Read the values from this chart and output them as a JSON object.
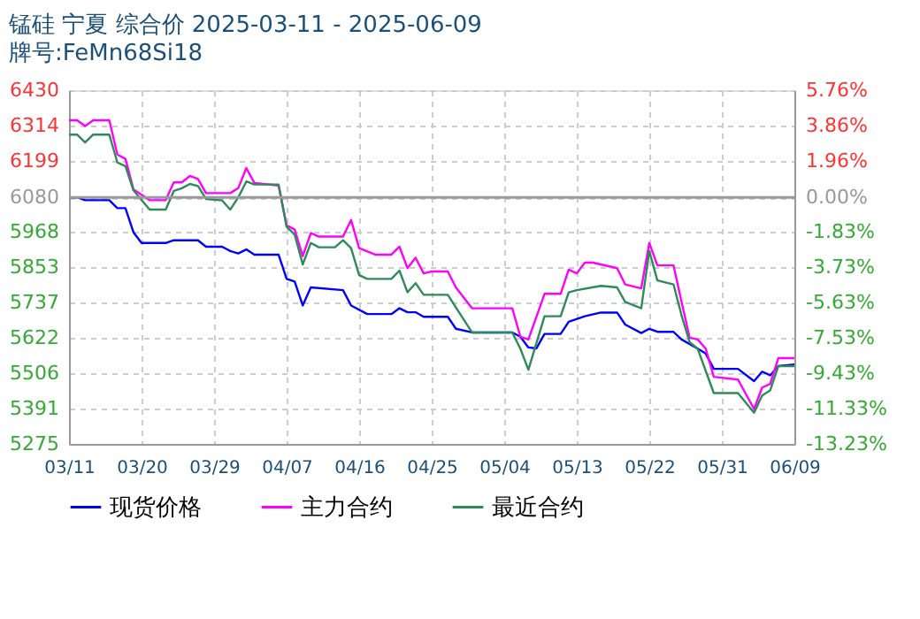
{
  "chart_data": {
    "type": "line",
    "title": "锰硅 宁夏 综合价 2025-03-11 - 2025-06-09",
    "subtitle": "牌号:FeMn68Si18",
    "series": [
      {
        "name": "现货价格",
        "color": "#0000ff",
        "x": [
          "2025-03-11",
          "2025-03-12",
          "2025-03-13",
          "2025-03-16",
          "2025-03-17",
          "2025-03-18",
          "2025-03-19",
          "2025-03-20",
          "2025-03-23",
          "2025-03-24",
          "2025-03-27",
          "2025-03-28",
          "2025-03-30",
          "2025-03-31",
          "2025-04-01",
          "2025-04-02",
          "2025-04-03",
          "2025-04-06",
          "2025-04-07",
          "2025-04-08",
          "2025-04-09",
          "2025-04-10",
          "2025-04-14",
          "2025-04-15",
          "2025-04-17",
          "2025-04-20",
          "2025-04-21",
          "2025-04-22",
          "2025-04-23",
          "2025-04-24",
          "2025-04-27",
          "2025-04-28",
          "2025-04-30",
          "2025-05-05",
          "2025-05-06",
          "2025-05-07",
          "2025-05-08",
          "2025-05-09",
          "2025-05-11",
          "2025-05-12",
          "2025-05-14",
          "2025-05-16",
          "2025-05-18",
          "2025-05-19",
          "2025-05-21",
          "2025-05-22",
          "2025-05-23",
          "2025-05-25",
          "2025-05-26",
          "2025-05-28",
          "2025-05-29",
          "2025-05-30",
          "2025-06-02",
          "2025-06-04",
          "2025-06-05",
          "2025-06-06",
          "2025-06-07",
          "2025-06-09"
        ],
        "values": [
          6080,
          6080,
          6071,
          6071,
          6045,
          6045,
          5966,
          5931,
          5931,
          5940,
          5940,
          5919,
          5919,
          5905,
          5897,
          5910,
          5893,
          5893,
          5814,
          5805,
          5727,
          5786,
          5777,
          5727,
          5699,
          5699,
          5718,
          5705,
          5705,
          5690,
          5690,
          5651,
          5639,
          5639,
          5625,
          5590,
          5587,
          5634,
          5634,
          5674,
          5692,
          5704,
          5704,
          5665,
          5637,
          5651,
          5641,
          5641,
          5616,
          5586,
          5570,
          5520,
          5520,
          5480,
          5511,
          5499,
          5529,
          5534
        ]
      },
      {
        "name": "主力合约",
        "color": "#ff00ff",
        "x": [
          "2025-03-11",
          "2025-03-12",
          "2025-03-13",
          "2025-03-14",
          "2025-03-16",
          "2025-03-17",
          "2025-03-18",
          "2025-03-19",
          "2025-03-21",
          "2025-03-23",
          "2025-03-24",
          "2025-03-25",
          "2025-03-26",
          "2025-03-27",
          "2025-03-28",
          "2025-03-31",
          "2025-04-01",
          "2025-04-02",
          "2025-04-03",
          "2025-04-06",
          "2025-04-07",
          "2025-04-08",
          "2025-04-09",
          "2025-04-10",
          "2025-04-11",
          "2025-04-14",
          "2025-04-15",
          "2025-04-16",
          "2025-04-18",
          "2025-04-20",
          "2025-04-21",
          "2025-04-22",
          "2025-04-23",
          "2025-04-24",
          "2025-04-25",
          "2025-04-27",
          "2025-04-28",
          "2025-04-30",
          "2025-05-05",
          "2025-05-06",
          "2025-05-07",
          "2025-05-09",
          "2025-05-11",
          "2025-05-12",
          "2025-05-13",
          "2025-05-14",
          "2025-05-15",
          "2025-05-18",
          "2025-05-19",
          "2025-05-21",
          "2025-05-22",
          "2025-05-23",
          "2025-05-25",
          "2025-05-26",
          "2025-05-27",
          "2025-05-28",
          "2025-05-29",
          "2025-05-30",
          "2025-06-02",
          "2025-06-04",
          "2025-06-05",
          "2025-06-06",
          "2025-06-07",
          "2025-06-09"
        ],
        "values": [
          6332,
          6332,
          6313,
          6332,
          6332,
          6220,
          6206,
          6106,
          6071,
          6071,
          6129,
          6129,
          6150,
          6140,
          6094,
          6094,
          6110,
          6176,
          6127,
          6119,
          5989,
          5975,
          5888,
          5963,
          5952,
          5952,
          6006,
          5914,
          5893,
          5893,
          5919,
          5849,
          5883,
          5832,
          5838,
          5838,
          5786,
          5718,
          5718,
          5625,
          5616,
          5765,
          5765,
          5844,
          5832,
          5867,
          5867,
          5849,
          5796,
          5783,
          5931,
          5858,
          5858,
          5739,
          5622,
          5616,
          5586,
          5494,
          5485,
          5389,
          5459,
          5471,
          5555,
          5555
        ]
      },
      {
        "name": "最近合约",
        "color": "#2e8b57",
        "x": [
          "2025-03-11",
          "2025-03-12",
          "2025-03-13",
          "2025-03-14",
          "2025-03-16",
          "2025-03-17",
          "2025-03-18",
          "2025-03-19",
          "2025-03-21",
          "2025-03-23",
          "2025-03-24",
          "2025-03-25",
          "2025-03-26",
          "2025-03-27",
          "2025-03-28",
          "2025-03-30",
          "2025-03-31",
          "2025-04-01",
          "2025-04-02",
          "2025-04-03",
          "2025-04-06",
          "2025-04-07",
          "2025-04-08",
          "2025-04-09",
          "2025-04-10",
          "2025-04-11",
          "2025-04-13",
          "2025-04-14",
          "2025-04-15",
          "2025-04-16",
          "2025-04-17",
          "2025-04-20",
          "2025-04-21",
          "2025-04-22",
          "2025-04-23",
          "2025-04-24",
          "2025-04-27",
          "2025-04-28",
          "2025-04-30",
          "2025-05-05",
          "2025-05-06",
          "2025-05-07",
          "2025-05-09",
          "2025-05-11",
          "2025-05-12",
          "2025-05-13",
          "2025-05-16",
          "2025-05-18",
          "2025-05-19",
          "2025-05-21",
          "2025-05-22",
          "2025-05-23",
          "2025-05-25",
          "2025-05-26",
          "2025-05-27",
          "2025-05-28",
          "2025-05-30",
          "2025-06-02",
          "2025-06-04",
          "2025-06-05",
          "2025-06-06",
          "2025-06-07",
          "2025-06-09"
        ],
        "values": [
          6285,
          6285,
          6259,
          6285,
          6285,
          6194,
          6182,
          6103,
          6040,
          6040,
          6101,
          6110,
          6124,
          6117,
          6075,
          6070,
          6040,
          6080,
          6132,
          6122,
          6122,
          5984,
          5958,
          5861,
          5931,
          5917,
          5917,
          5940,
          5914,
          5826,
          5814,
          5814,
          5841,
          5770,
          5800,
          5762,
          5762,
          5721,
          5639,
          5639,
          5586,
          5517,
          5692,
          5692,
          5770,
          5777,
          5791,
          5786,
          5739,
          5718,
          5905,
          5809,
          5796,
          5695,
          5607,
          5586,
          5441,
          5441,
          5377,
          5433,
          5450,
          5529,
          5529
        ]
      }
    ],
    "xlim": [
      "2025-03-11",
      "2025-06-09"
    ],
    "xticks": [
      {
        "value": "2025-03-11",
        "label": "03/11"
      },
      {
        "value": "2025-03-20",
        "label": "03/20"
      },
      {
        "value": "2025-03-29",
        "label": "03/29"
      },
      {
        "value": "2025-04-07",
        "label": "04/07"
      },
      {
        "value": "2025-04-16",
        "label": "04/16"
      },
      {
        "value": "2025-04-25",
        "label": "04/25"
      },
      {
        "value": "2025-05-04",
        "label": "05/04"
      },
      {
        "value": "2025-05-13",
        "label": "05/13"
      },
      {
        "value": "2025-05-22",
        "label": "05/22"
      },
      {
        "value": "2025-05-31",
        "label": "05/31"
      },
      {
        "value": "2025-06-09",
        "label": "06/09"
      }
    ],
    "ylim": [
      5275,
      6430
    ],
    "yticks": [
      5275,
      5391,
      5506,
      5622,
      5737,
      5853,
      5968,
      6080,
      6199,
      6314,
      6430
    ],
    "y2lim": [
      -13.23,
      5.76
    ],
    "y2ticks": [
      {
        "value": -13.23,
        "label": "-13.23%"
      },
      {
        "value": -11.33,
        "label": "-11.33%"
      },
      {
        "value": -9.43,
        "label": "-9.43%"
      },
      {
        "value": -7.53,
        "label": "-7.53%"
      },
      {
        "value": -5.63,
        "label": "-5.63%"
      },
      {
        "value": -3.73,
        "label": "-3.73%"
      },
      {
        "value": -1.83,
        "label": "-1.83%"
      },
      {
        "value": 0,
        "label": "0.00%"
      },
      {
        "value": 1.96,
        "label": "1.96%"
      },
      {
        "value": 3.86,
        "label": "3.86%"
      },
      {
        "value": 5.76,
        "label": "5.76%"
      }
    ],
    "ref_lines": [
      {
        "axis": "y2",
        "value": 0,
        "color": "#999999"
      }
    ],
    "grid": true,
    "legend": "bottom",
    "line_style": "solid",
    "marker": "none"
  }
}
